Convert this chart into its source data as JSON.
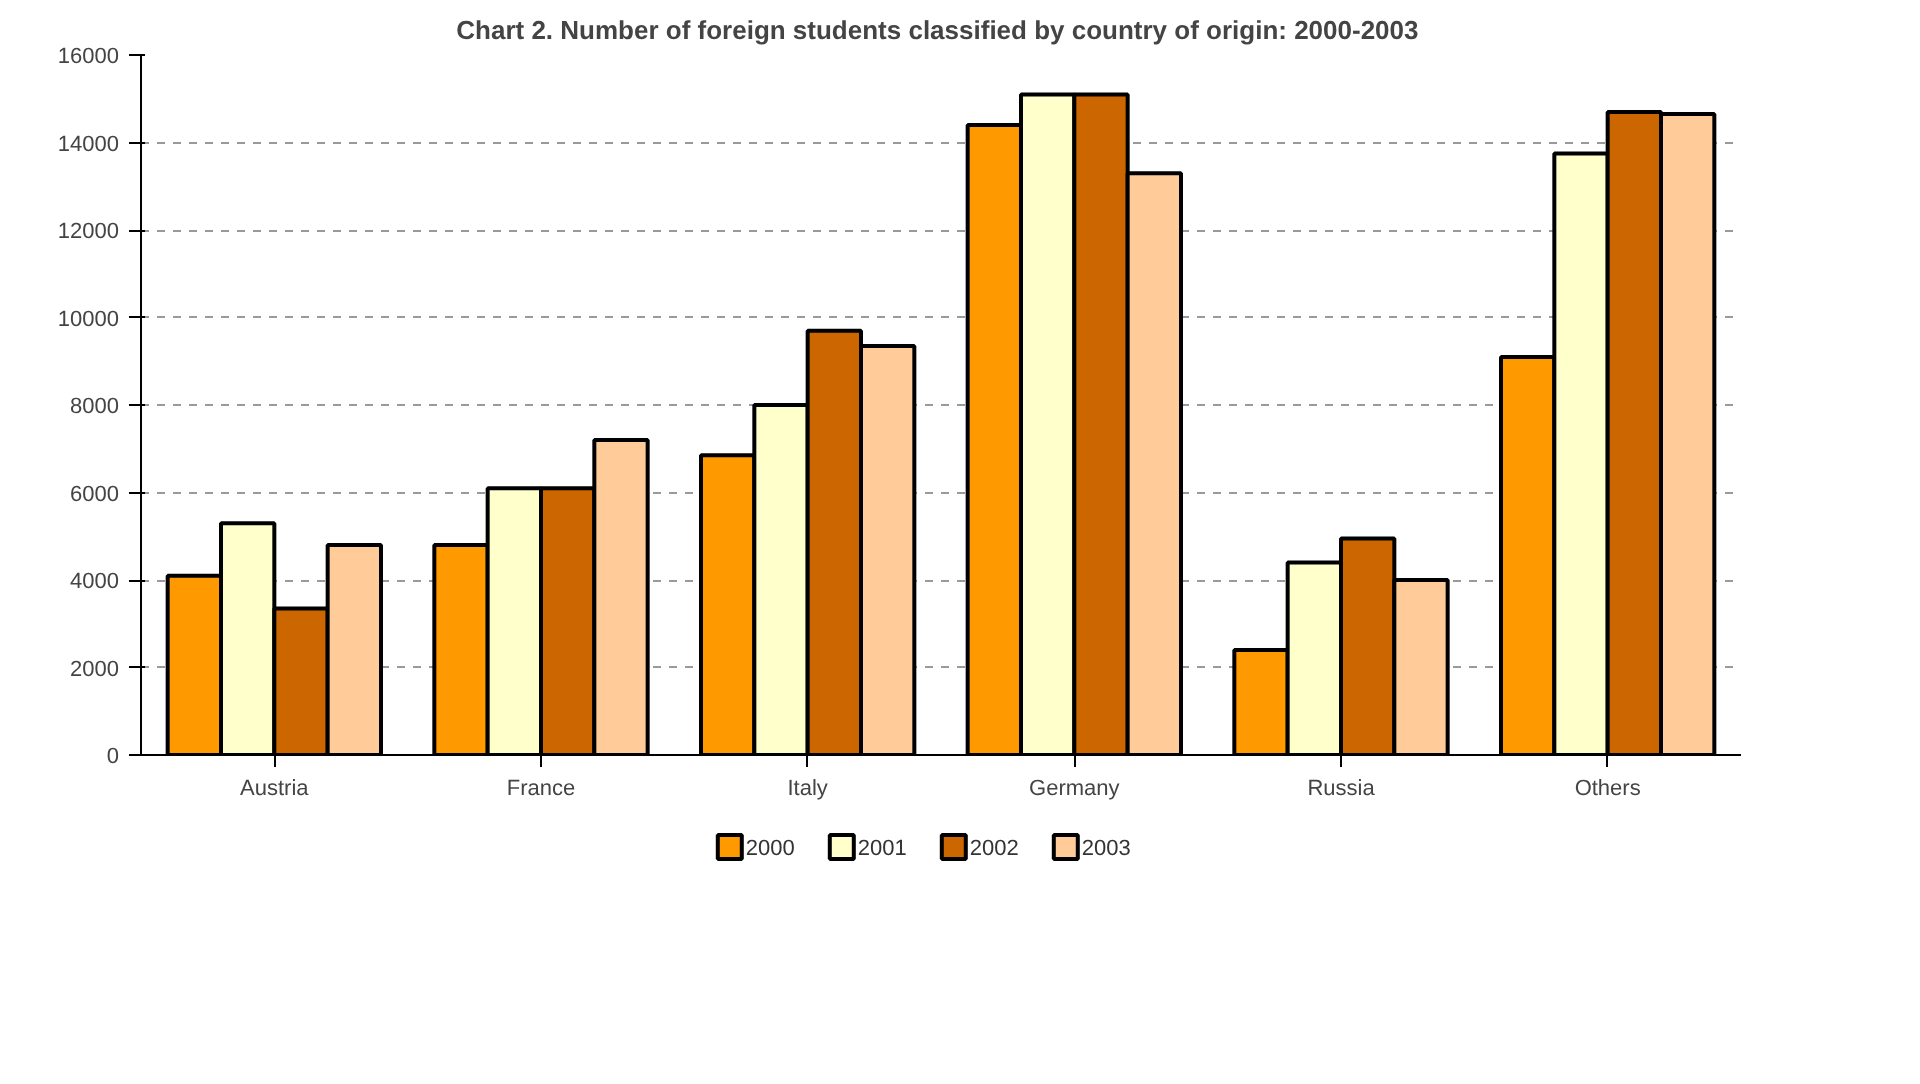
{
  "chart_data": {
    "type": "bar",
    "title": "Chart 2.  Number of foreign students classified by country of origin: 2000-2003",
    "categories": [
      "Austria",
      "France",
      "Italy",
      "Germany",
      "Russia",
      "Others"
    ],
    "series": [
      {
        "name": "2000",
        "color": "#ff9900",
        "values": [
          4100,
          4800,
          6850,
          14400,
          2400,
          9100
        ]
      },
      {
        "name": "2001",
        "color": "#ffffcc",
        "values": [
          5300,
          6100,
          8000,
          15100,
          4400,
          13750
        ]
      },
      {
        "name": "2002",
        "color": "#cc6600",
        "values": [
          3350,
          6100,
          9700,
          15100,
          4950,
          14700
        ]
      },
      {
        "name": "2003",
        "color": "#ffcc99",
        "values": [
          4800,
          7200,
          9350,
          13300,
          4000,
          14650
        ]
      }
    ],
    "ylim": [
      0,
      16000
    ],
    "yticks": [
      0,
      2000,
      4000,
      6000,
      8000,
      10000,
      12000,
      14000,
      16000
    ],
    "grid": "y",
    "legend": "bottom"
  }
}
